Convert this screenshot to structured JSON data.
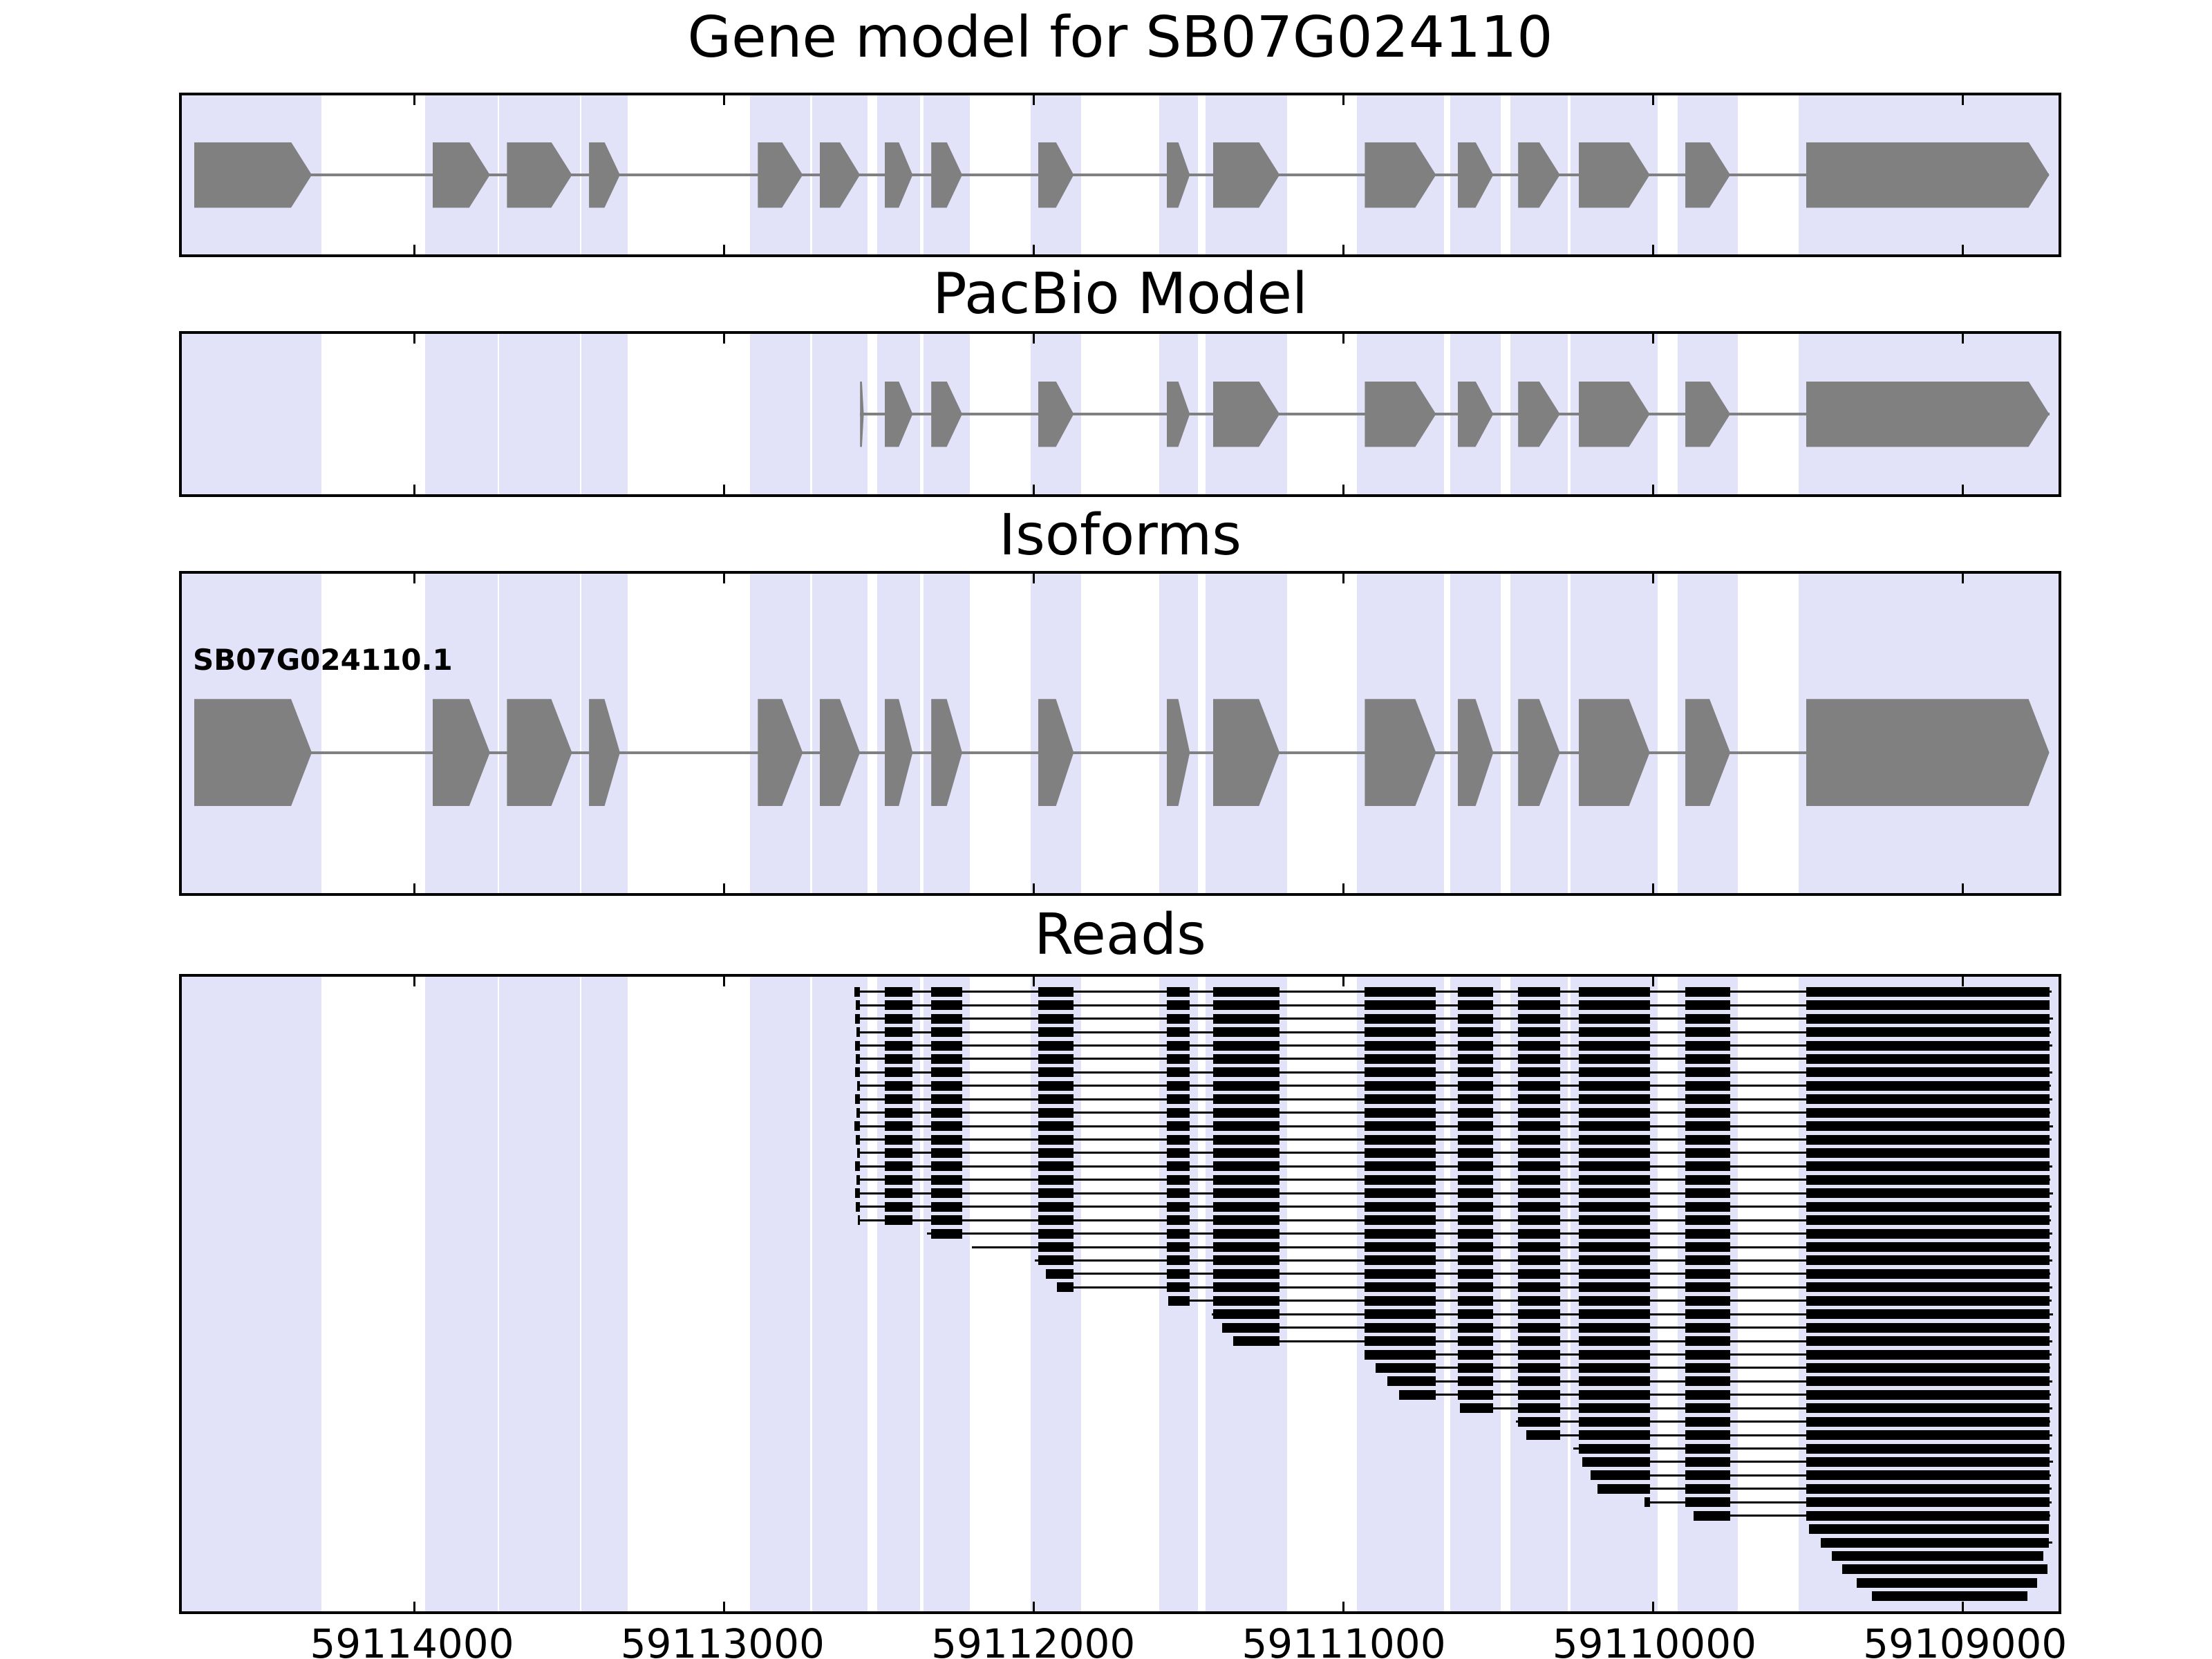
{
  "titles": {
    "gene_model": "Gene model for SB07G024110",
    "pacbio": "PacBio Model",
    "isoforms": "Isoforms",
    "reads": "Reads"
  },
  "isoform_label": "SB07G024110.1",
  "colors": {
    "exon": "#808080",
    "intron_line": "#808080",
    "band": "#e2e2f8",
    "read": "#000000",
    "border": "#000000"
  },
  "chart_data": {
    "type": "genome-browser",
    "title": "Gene model for SB07G024110",
    "panels": [
      "Gene model for SB07G024110",
      "PacBio Model",
      "Isoforms",
      "Reads"
    ],
    "x_axis": {
      "ticks": [
        59114000,
        59113000,
        59112000,
        59111000,
        59110000,
        59109000
      ],
      "xmin": 59114750,
      "xmax": 59108690,
      "orientation": "decreasing-left-to-right"
    },
    "gene_model": {
      "name": "SB07G024110",
      "exons": [
        [
          59114710,
          59114330
        ],
        [
          59113940,
          59113755
        ],
        [
          59113700,
          59113490
        ],
        [
          59113435,
          59113335
        ],
        [
          59112890,
          59112745
        ],
        [
          59112690,
          59112560
        ],
        [
          59112480,
          59112390
        ],
        [
          59112330,
          59112230
        ],
        [
          59111985,
          59111870
        ],
        [
          59111570,
          59111495
        ],
        [
          59111420,
          59111205
        ],
        [
          59110930,
          59110700
        ],
        [
          59110630,
          59110515
        ],
        [
          59110435,
          59110300
        ],
        [
          59110240,
          59110010
        ],
        [
          59109895,
          59109750
        ],
        [
          59109505,
          59108720
        ]
      ]
    },
    "pacbio_model": {
      "exons": [
        [
          59112560,
          59112548
        ],
        [
          59112480,
          59112390
        ],
        [
          59112330,
          59112230
        ],
        [
          59111985,
          59111870
        ],
        [
          59111570,
          59111495
        ],
        [
          59111420,
          59111205
        ],
        [
          59110930,
          59110700
        ],
        [
          59110630,
          59110515
        ],
        [
          59110435,
          59110300
        ],
        [
          59110240,
          59110010
        ],
        [
          59109895,
          59109750
        ],
        [
          59109505,
          59108720
        ]
      ]
    },
    "isoforms": [
      {
        "name": "SB07G024110.1",
        "exons": [
          [
            59114710,
            59114330
          ],
          [
            59113940,
            59113755
          ],
          [
            59113700,
            59113490
          ],
          [
            59113435,
            59113335
          ],
          [
            59112890,
            59112745
          ],
          [
            59112690,
            59112560
          ],
          [
            59112480,
            59112390
          ],
          [
            59112330,
            59112230
          ],
          [
            59111985,
            59111870
          ],
          [
            59111570,
            59111495
          ],
          [
            59111420,
            59111205
          ],
          [
            59110930,
            59110700
          ],
          [
            59110630,
            59110515
          ],
          [
            59110435,
            59110300
          ],
          [
            59110240,
            59110010
          ],
          [
            59109895,
            59109750
          ],
          [
            59109505,
            59108720
          ]
        ]
      }
    ],
    "bands": [
      [
        59114750,
        59114300
      ],
      [
        59113965,
        59113730
      ],
      [
        59113725,
        59113465
      ],
      [
        59113460,
        59113310
      ],
      [
        59112915,
        59112720
      ],
      [
        59112715,
        59112535
      ],
      [
        59112505,
        59112365
      ],
      [
        59112355,
        59112205
      ],
      [
        59112010,
        59111845
      ],
      [
        59111595,
        59111470
      ],
      [
        59111445,
        59111180
      ],
      [
        59110955,
        59110675
      ],
      [
        59110655,
        59110490
      ],
      [
        59110460,
        59110275
      ],
      [
        59110265,
        59109985
      ],
      [
        59109920,
        59109725
      ],
      [
        59109530,
        59108690
      ]
    ],
    "reads": [
      [
        59112578,
        59108712
      ],
      [
        59112574,
        59108718
      ],
      [
        59112576,
        59108708
      ],
      [
        59112571,
        59108715
      ],
      [
        59112577,
        59108710
      ],
      [
        59112573,
        59108720
      ],
      [
        59112575,
        59108709
      ],
      [
        59112570,
        59108714
      ],
      [
        59112576,
        59108711
      ],
      [
        59112572,
        59108717
      ],
      [
        59112578,
        59108707
      ],
      [
        59112574,
        59108713
      ],
      [
        59112570,
        59108719
      ],
      [
        59112576,
        59108710
      ],
      [
        59112572,
        59108716
      ],
      [
        59112577,
        59108708
      ],
      [
        59112573,
        59108712
      ],
      [
        59112568,
        59108715
      ],
      [
        59112345,
        59108710
      ],
      [
        59112200,
        59108714
      ],
      [
        59111995,
        59108709
      ],
      [
        59111960,
        59108716
      ],
      [
        59111925,
        59108711
      ],
      [
        59111565,
        59108713
      ],
      [
        59111425,
        59108708
      ],
      [
        59111390,
        59108715
      ],
      [
        59111355,
        59108710
      ],
      [
        59110932,
        59108712
      ],
      [
        59110895,
        59108717
      ],
      [
        59110858,
        59108709
      ],
      [
        59110820,
        59108714
      ],
      [
        59110622,
        59108711
      ],
      [
        59110442,
        59108716
      ],
      [
        59110408,
        59108710
      ],
      [
        59110258,
        59108713
      ],
      [
        59110228,
        59108708
      ],
      [
        59110202,
        59108715
      ],
      [
        59110178,
        59108711
      ],
      [
        59110028,
        59108712
      ],
      [
        59109868,
        59108716
      ],
      [
        59109495,
        59108720
      ],
      [
        59109458,
        59108710
      ],
      [
        59109422,
        59108740
      ],
      [
        59109388,
        59108725
      ],
      [
        59109342,
        59108760
      ],
      [
        59109292,
        59108790
      ]
    ]
  }
}
